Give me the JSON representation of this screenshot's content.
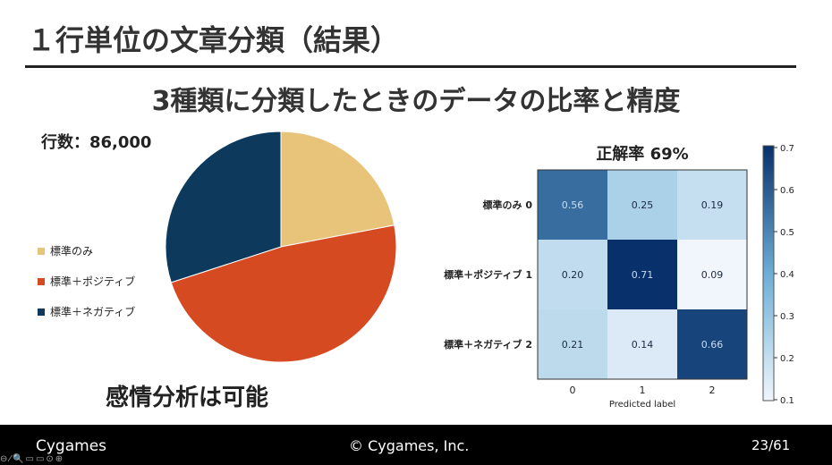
{
  "title": "１行単位の文章分類（結果）",
  "subtitle": "3種類に分類したときのデータの比率と精度",
  "row_count": "行数：86,000",
  "conclusion": "感情分析は可能",
  "footer": {
    "logo": "Cygames",
    "copyright": "© Cygames, Inc.",
    "page": "23/61"
  },
  "chart_data": [
    {
      "type": "pie",
      "labels": [
        "標準のみ",
        "標準＋ポジティブ",
        "標準＋ネガティブ"
      ],
      "values": [
        22,
        48,
        30
      ],
      "colors": [
        "#e8c47a",
        "#d64a22",
        "#0d3a5c"
      ],
      "legend": "left"
    },
    {
      "type": "heatmap",
      "title": "正解率 69%",
      "xlabel": "Predicted label",
      "x_ticks": [
        "0",
        "1",
        "2"
      ],
      "y_ticks": [
        "標準のみ 0",
        "標準＋ポジティブ 1",
        "標準＋ネガティブ 2"
      ],
      "values": [
        [
          0.56,
          0.25,
          0.19
        ],
        [
          0.2,
          0.71,
          0.09
        ],
        [
          0.21,
          0.14,
          0.66
        ]
      ],
      "colorbar_ticks": [
        "0.7",
        "0.6",
        "0.5",
        "0.4",
        "0.3",
        "0.2",
        "0.1"
      ],
      "vmin": 0.09,
      "vmax": 0.71,
      "colormap": "Blues"
    }
  ]
}
